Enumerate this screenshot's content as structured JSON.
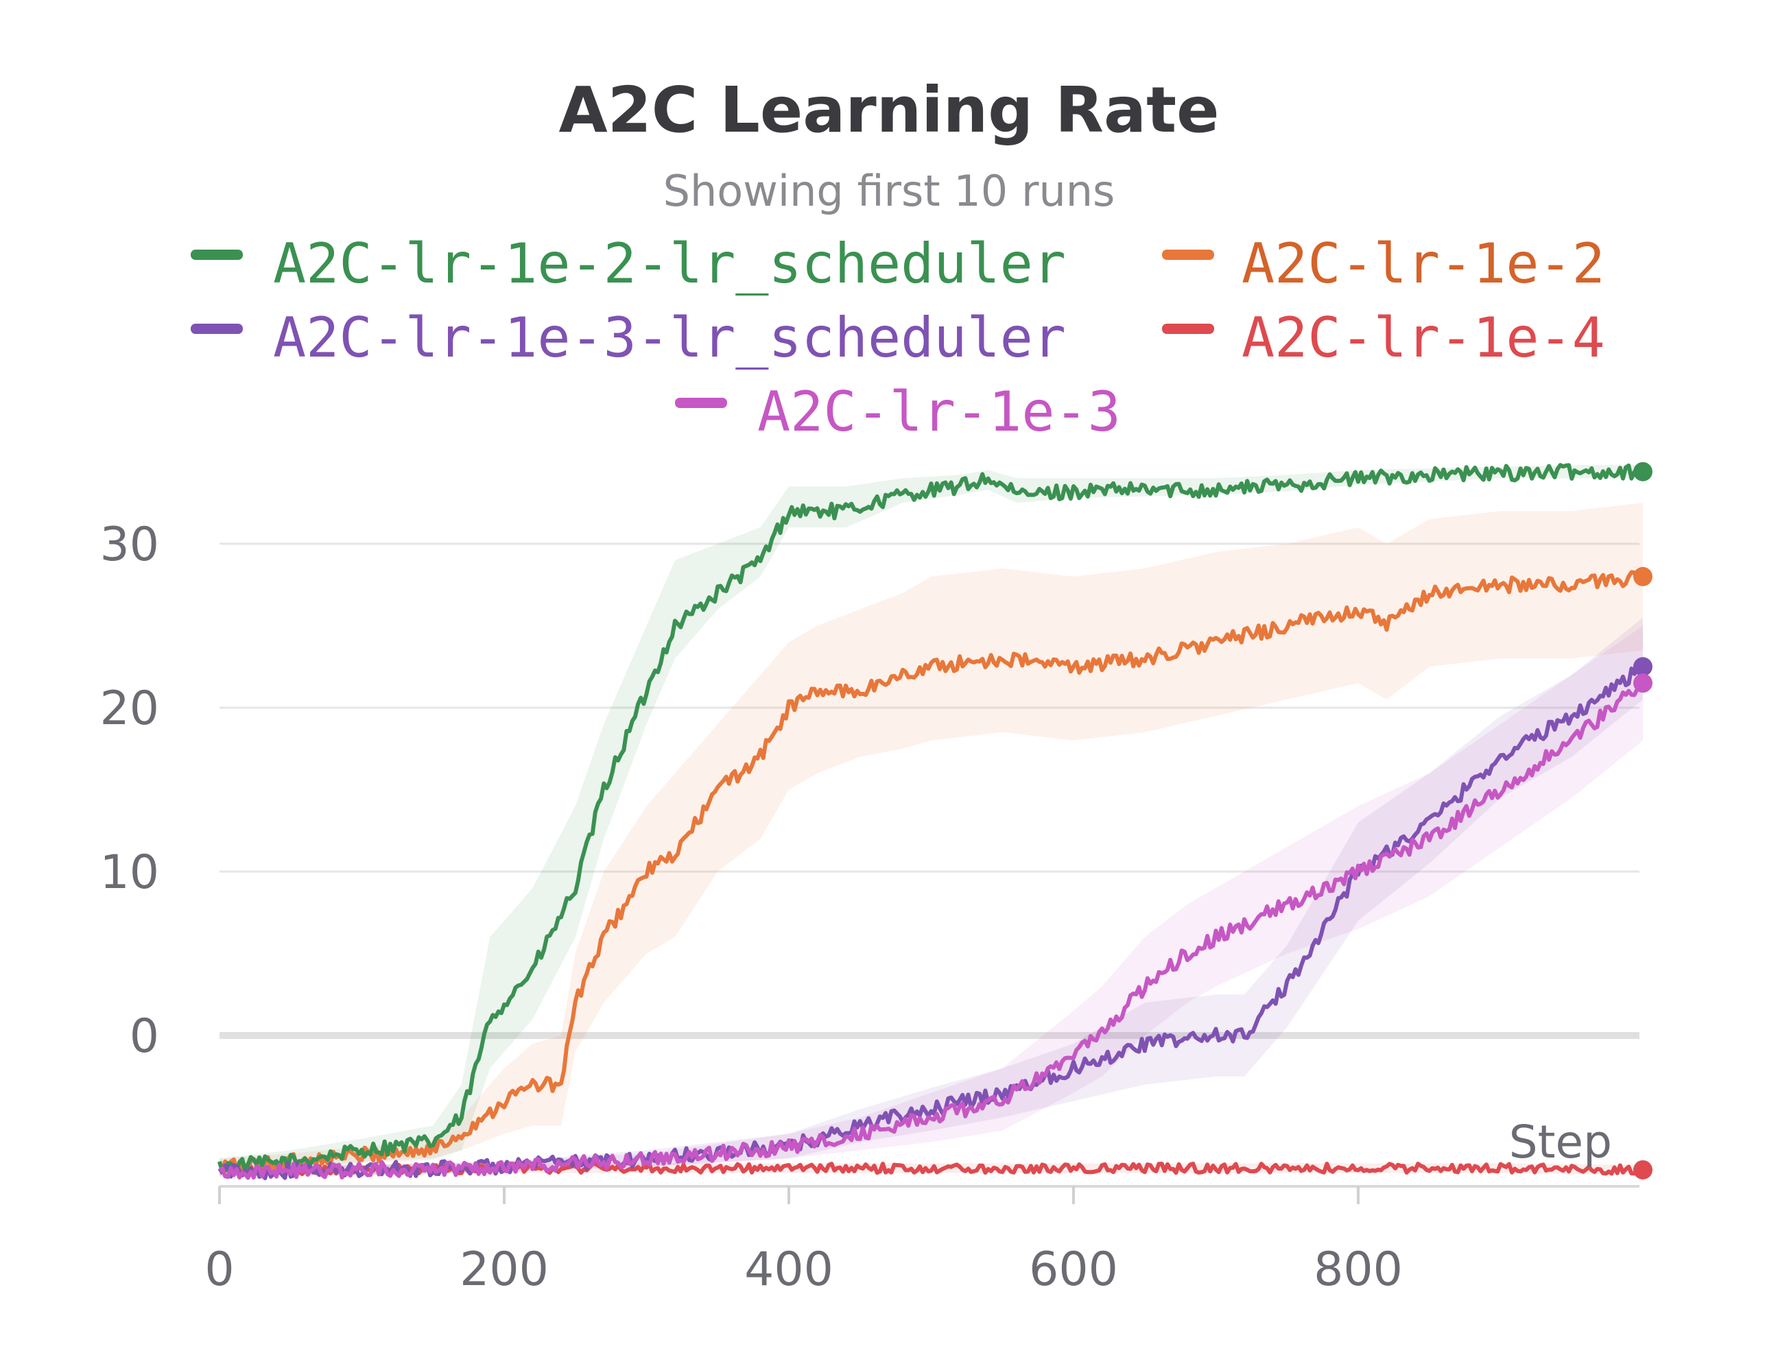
{
  "chart_data": {
    "type": "line",
    "title": "A2C Learning Rate",
    "subtitle": "Showing first 10 runs",
    "xlabel": "Step",
    "ylabel": "",
    "xlim": [
      0,
      1000
    ],
    "ylim": [
      -11,
      36
    ],
    "xticks": [
      0,
      200,
      400,
      600,
      800
    ],
    "yticks": [
      0,
      10,
      20,
      30
    ],
    "grid": true,
    "legend": "top",
    "series": [
      {
        "name": "A2C-lr-1e-2-lr_scheduler",
        "color": "#3a9151",
        "x": [
          0,
          50,
          100,
          150,
          170,
          190,
          220,
          250,
          270,
          300,
          320,
          350,
          380,
          400,
          440,
          480,
          520,
          540,
          560,
          600,
          650,
          700,
          750,
          800,
          850,
          900,
          950,
          1000
        ],
        "y": [
          -8,
          -7.7,
          -7,
          -6.5,
          -5,
          1,
          4,
          9,
          15,
          21,
          25,
          27,
          29,
          32,
          32,
          33,
          33.5,
          34,
          33,
          33.2,
          33.3,
          33.3,
          33.6,
          34,
          34.2,
          34.3,
          34.4,
          34.4
        ],
        "lower": [
          -8.5,
          -8.2,
          -7.7,
          -7.5,
          -7,
          -2,
          1,
          6,
          12,
          19,
          23,
          26,
          28,
          31,
          31,
          32.5,
          33,
          33.3,
          32.5,
          32.8,
          32.9,
          33,
          33.2,
          33.6,
          33.8,
          34,
          34,
          34
        ],
        "upper": [
          -7.5,
          -7,
          -6.3,
          -5.5,
          -3,
          6,
          9,
          14,
          19,
          25,
          29,
          30,
          31,
          33.5,
          33.5,
          34,
          34.2,
          34.5,
          34,
          34,
          34,
          34,
          34.2,
          34.5,
          34.6,
          34.7,
          34.8,
          34.8
        ]
      },
      {
        "name": "A2C-lr-1e-2",
        "color": "#e8773a",
        "x": [
          0,
          50,
          100,
          150,
          170,
          200,
          220,
          240,
          250,
          270,
          300,
          320,
          350,
          380,
          400,
          420,
          450,
          480,
          500,
          550,
          600,
          650,
          700,
          750,
          800,
          820,
          850,
          900,
          950,
          1000
        ],
        "y": [
          -8,
          -7.7,
          -7.3,
          -7,
          -6,
          -4,
          -3,
          -3,
          2,
          6,
          10,
          11,
          15,
          17,
          20,
          21,
          21,
          22,
          22.5,
          23,
          22.5,
          23,
          24,
          25,
          26,
          25,
          27,
          27.5,
          27.5,
          28
        ],
        "lower": [
          -8.5,
          -8.2,
          -7.8,
          -7.6,
          -7,
          -6,
          -5.5,
          -5.5,
          -1,
          2,
          5,
          6,
          10,
          12,
          15,
          16,
          17,
          17.5,
          18,
          18.5,
          18,
          18.5,
          19.5,
          20.5,
          21.5,
          20.5,
          22.5,
          23,
          23,
          23.5
        ],
        "upper": [
          -7.5,
          -7.2,
          -6.8,
          -6.4,
          -5,
          -2,
          -0.5,
          0,
          5,
          10,
          14,
          16,
          19,
          22,
          24,
          25,
          26,
          27,
          28,
          28.5,
          28,
          28.5,
          29.5,
          30,
          31,
          30,
          31.5,
          32,
          32,
          32.5
        ]
      },
      {
        "name": "A2C-lr-1e-3-lr_scheduler",
        "color": "#7f52b3",
        "x": [
          0,
          100,
          200,
          300,
          400,
          450,
          500,
          550,
          600,
          650,
          700,
          720,
          750,
          800,
          850,
          900,
          950,
          1000
        ],
        "y": [
          -8.3,
          -8.2,
          -8,
          -7.5,
          -6.8,
          -5.5,
          -4.5,
          -3.5,
          -2,
          -0.5,
          0,
          0,
          3,
          10,
          13,
          17,
          19.5,
          22.5
        ],
        "lower": [
          -8.6,
          -8.5,
          -8.3,
          -8,
          -7.5,
          -6.5,
          -5.8,
          -5,
          -4,
          -3,
          -2.5,
          -2.5,
          0.5,
          7,
          10.5,
          14.5,
          17,
          20.5
        ],
        "upper": [
          -8,
          -7.9,
          -7.7,
          -7,
          -6,
          -4.5,
          -3.2,
          -2,
          -0.5,
          2,
          2.5,
          2.5,
          5.5,
          13,
          16,
          19.5,
          22,
          25.5
        ]
      },
      {
        "name": "A2C-lr-1e-4",
        "color": "#de4a4f",
        "x": [
          0,
          100,
          200,
          300,
          400,
          500,
          600,
          700,
          800,
          900,
          1000
        ],
        "y": [
          -8.2,
          -8.2,
          -8.1,
          -8.1,
          -8.1,
          -8.1,
          -8.1,
          -8.1,
          -8.1,
          -8.1,
          -8.2
        ],
        "lower": [
          -8.5,
          -8.5,
          -8.4,
          -8.4,
          -8.4,
          -8.4,
          -8.4,
          -8.4,
          -8.4,
          -8.4,
          -8.5
        ],
        "upper": [
          -7.9,
          -7.9,
          -7.8,
          -7.8,
          -7.8,
          -7.8,
          -7.8,
          -7.8,
          -7.8,
          -7.8,
          -7.9
        ]
      },
      {
        "name": "A2C-lr-1e-3",
        "color": "#c657c4",
        "x": [
          0,
          100,
          200,
          300,
          400,
          450,
          500,
          550,
          600,
          620,
          650,
          680,
          700,
          750,
          800,
          850,
          900,
          950,
          1000
        ],
        "y": [
          -8.3,
          -8.2,
          -8,
          -7.6,
          -6.8,
          -6,
          -5,
          -4,
          -1,
          0,
          3,
          5,
          6,
          8,
          10,
          12,
          15,
          18,
          21.5
        ],
        "lower": [
          -8.6,
          -8.5,
          -8.3,
          -8,
          -7.5,
          -7,
          -6.5,
          -5.8,
          -3.5,
          -2.5,
          0,
          2,
          3,
          5,
          6.5,
          8.5,
          11.5,
          14.5,
          18
        ],
        "upper": [
          -8,
          -7.9,
          -7.7,
          -7.2,
          -6,
          -5,
          -3.5,
          -2,
          1.5,
          3,
          6,
          8,
          9,
          11.5,
          14,
          16,
          19,
          22,
          25
        ]
      }
    ]
  },
  "legend": {
    "items": [
      {
        "label": "A2C-lr-1e-2-lr_scheduler",
        "color": "#3a9151"
      },
      {
        "label": "A2C-lr-1e-2",
        "color": "#e8773a"
      },
      {
        "label": "A2C-lr-1e-3-lr_scheduler",
        "color": "#7f52b3"
      },
      {
        "label": "A2C-lr-1e-4",
        "color": "#de4a4f"
      },
      {
        "label": "A2C-lr-1e-3",
        "color": "#c657c4"
      }
    ]
  }
}
